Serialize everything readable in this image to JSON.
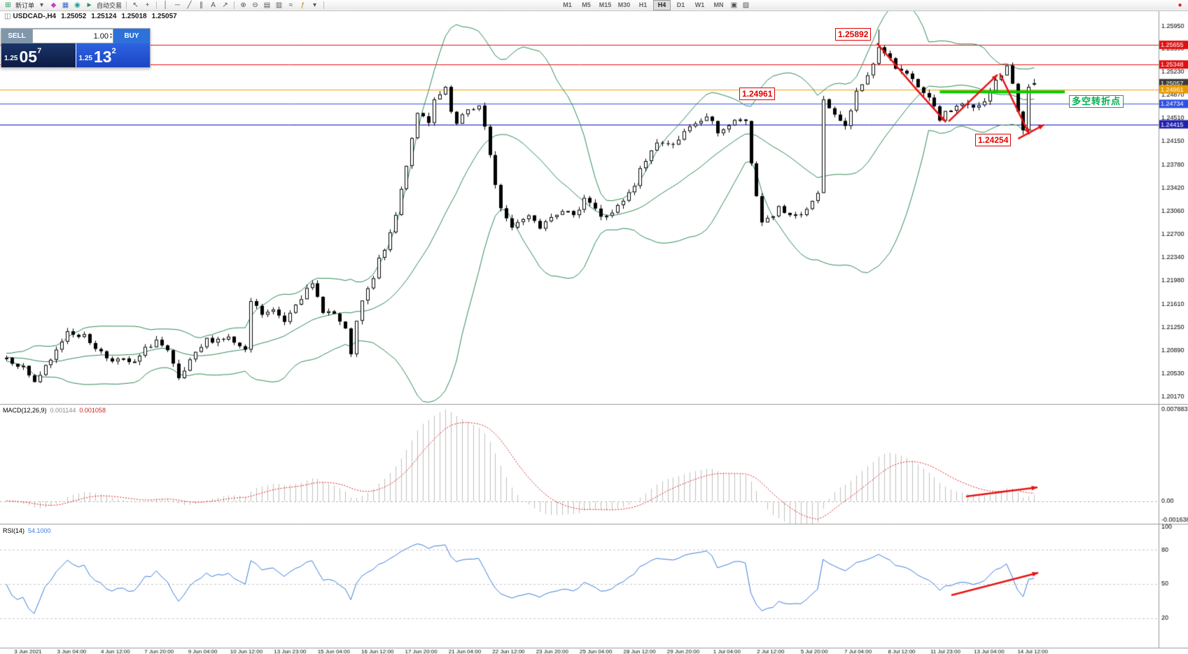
{
  "toolbar": {
    "new_order_label": "新订单",
    "autotrading_label": "自动交易",
    "timeframes": [
      "M1",
      "M5",
      "M15",
      "M30",
      "H1",
      "H4",
      "D1",
      "W1",
      "MN"
    ],
    "active_timeframe": "H4",
    "icons": {
      "new_order": "⊞",
      "caret": "▾",
      "style": "◆",
      "panels": "▦",
      "cycle": "◉",
      "play": "►",
      "cursor": "↖",
      "crosshair": "+",
      "vline": "│",
      "hline": "─",
      "trendline": "╱",
      "channel": "∥",
      "text": "A",
      "arrows": "↗",
      "zoom_in": "⊕",
      "zoom_out": "⊖",
      "chart_bars": "▥",
      "chart_candles": "▤",
      "chart_line": "≈",
      "indicators": "ƒ",
      "tile": "▣",
      "templates": "▨",
      "alert": "●"
    }
  },
  "chart_header": {
    "symbol_period": "USDCAD-,H4",
    "open": "1.25052",
    "high": "1.25124",
    "low": "1.25018",
    "close": "1.25057"
  },
  "trade_panel": {
    "sell_label": "SELL",
    "buy_label": "BUY",
    "volume": "1.00",
    "spin_up": "▴",
    "spin_down": "▾",
    "sell_price": {
      "base": "1.25",
      "big": "05",
      "pip": "7"
    },
    "buy_price": {
      "base": "1.25",
      "big": "13",
      "pip": "2"
    }
  },
  "annotations": {
    "peak_label": "1.25892",
    "support_label": "1.24961",
    "low_label": "1.24254",
    "turning_point_label": "多空转折点"
  },
  "chart_data": {
    "type": "candlestick",
    "symbol": "USDCAD-",
    "timeframe": "H4",
    "ohlc": {
      "open": 1.25052,
      "high": 1.25124,
      "low": 1.25018,
      "close": 1.25057
    },
    "price_scale": {
      "min": 1.2005,
      "max": 1.2618,
      "ticks": [
        "1.25950",
        "1.25590",
        "1.25230",
        "1.24870",
        "1.24510",
        "1.24150",
        "1.23780",
        "1.23420",
        "1.23060",
        "1.22700",
        "1.22340",
        "1.21980",
        "1.21610",
        "1.21250",
        "1.20890",
        "1.20530",
        "1.20170"
      ]
    },
    "tagged_prices": [
      {
        "label": "1.25655",
        "value": 1.25655,
        "bg": "#e01010",
        "line": "#ee1111"
      },
      {
        "label": "1.25348",
        "value": 1.25348,
        "bg": "#e01010",
        "line": "#ee1111"
      },
      {
        "label": "1.25057",
        "value": 1.25057,
        "bg": "#3a3a3a",
        "line": null
      },
      {
        "label": "1.24961",
        "value": 1.24961,
        "bg": "#e89b00",
        "line": "#f0a000"
      },
      {
        "label": "1.24734",
        "value": 1.24734,
        "bg": "#3050e0",
        "line": "#3355e8"
      },
      {
        "label": "1.24415",
        "value": 1.24415,
        "bg": "#2020b0",
        "line": "#1111bb"
      }
    ],
    "bars": 186,
    "price_path": [
      [
        0,
        1.2078
      ],
      [
        3,
        1.2062
      ],
      [
        5,
        1.204
      ],
      [
        8,
        1.2072
      ],
      [
        11,
        1.212
      ],
      [
        14,
        1.211
      ],
      [
        18,
        1.2078
      ],
      [
        21,
        1.2072
      ],
      [
        23,
        1.2068
      ],
      [
        25,
        1.209
      ],
      [
        27,
        1.2105
      ],
      [
        29,
        1.2085
      ],
      [
        31,
        1.2042
      ],
      [
        33,
        1.207
      ],
      [
        36,
        1.2105
      ],
      [
        40,
        1.2108
      ],
      [
        43,
        1.2085
      ],
      [
        44,
        1.2165
      ],
      [
        46,
        1.2145
      ],
      [
        48,
        1.215
      ],
      [
        50,
        1.2135
      ],
      [
        52,
        1.2165
      ],
      [
        55,
        1.219
      ],
      [
        57,
        1.2152
      ],
      [
        59,
        1.2145
      ],
      [
        61,
        1.2118
      ],
      [
        62,
        1.2085
      ],
      [
        63,
        1.213
      ],
      [
        64,
        1.2165
      ],
      [
        66,
        1.22
      ],
      [
        67,
        1.223
      ],
      [
        69,
        1.2268
      ],
      [
        70,
        1.23
      ],
      [
        72,
        1.238
      ],
      [
        74,
        1.2462
      ],
      [
        76,
        1.244
      ],
      [
        77,
        1.2478
      ],
      [
        79,
        1.2495
      ],
      [
        80,
        1.246
      ],
      [
        81,
        1.244
      ],
      [
        83,
        1.2465
      ],
      [
        85,
        1.247
      ],
      [
        86,
        1.2435
      ],
      [
        87,
        1.239
      ],
      [
        89,
        1.231
      ],
      [
        91,
        1.228
      ],
      [
        92,
        1.2292
      ],
      [
        94,
        1.23
      ],
      [
        96,
        1.2282
      ],
      [
        97,
        1.2295
      ],
      [
        100,
        1.231
      ],
      [
        102,
        1.2295
      ],
      [
        104,
        1.233
      ],
      [
        106,
        1.231
      ],
      [
        107,
        1.2295
      ],
      [
        109,
        1.2305
      ],
      [
        111,
        1.232
      ],
      [
        113,
        1.2345
      ],
      [
        114,
        1.237
      ],
      [
        116,
        1.24
      ],
      [
        117,
        1.2415
      ],
      [
        119,
        1.2408
      ],
      [
        121,
        1.242
      ],
      [
        123,
        1.2435
      ],
      [
        124,
        1.244
      ],
      [
        126,
        1.2455
      ],
      [
        128,
        1.243
      ],
      [
        130,
        1.244
      ],
      [
        132,
        1.245
      ],
      [
        133,
        1.2442
      ],
      [
        134,
        1.238
      ],
      [
        135,
        1.233
      ],
      [
        136,
        1.229
      ],
      [
        138,
        1.23
      ],
      [
        139,
        1.231
      ],
      [
        141,
        1.2295
      ],
      [
        143,
        1.23
      ],
      [
        145,
        1.232
      ],
      [
        146,
        1.233
      ],
      [
        147,
        1.248
      ],
      [
        148,
        1.2465
      ],
      [
        149,
        1.246
      ],
      [
        150,
        1.2445
      ],
      [
        151,
        1.244
      ],
      [
        152,
        1.2462
      ],
      [
        153,
        1.249
      ],
      [
        155,
        1.252
      ],
      [
        157,
        1.256
      ],
      [
        158,
        1.255
      ],
      [
        160,
        1.253
      ],
      [
        162,
        1.2525
      ],
      [
        164,
        1.2495
      ],
      [
        166,
        1.248
      ],
      [
        168,
        1.245
      ],
      [
        170,
        1.2465
      ],
      [
        172,
        1.2475
      ],
      [
        174,
        1.2465
      ],
      [
        176,
        1.2475
      ],
      [
        178,
        1.251
      ],
      [
        180,
        1.253
      ],
      [
        181,
        1.2505
      ],
      [
        182,
        1.2465
      ],
      [
        183,
        1.243
      ],
      [
        184,
        1.25
      ],
      [
        185,
        1.25057
      ]
    ],
    "bollinger": {
      "period": 20,
      "deviation": 2,
      "color": "#2e8b57"
    },
    "candle_colors": {
      "up_fill": "#ffffff",
      "down_fill": "#000000",
      "border": "#000000"
    },
    "green_level_line": {
      "bar1": 168,
      "bar2": 190.5,
      "price": 1.2492,
      "color": "#00cf00",
      "width": 4
    },
    "arrow_color": "#e81212",
    "trend_arrows": [
      {
        "pts": [
          [
            156.7,
            1.2568
          ],
          [
            163.8,
            1.2496
          ],
          [
            169.1,
            1.2445
          ]
        ]
      },
      {
        "pts": [
          [
            169.6,
            1.2446
          ],
          [
            178.4,
            1.2519
          ]
        ]
      },
      {
        "pts": [
          [
            178.8,
            1.2521
          ],
          [
            184.1,
            1.2426
          ]
        ]
      },
      {
        "pts": [
          [
            182.1,
            1.2419
          ],
          [
            186.8,
            1.2441
          ]
        ]
      }
    ],
    "macd": {
      "params": "MACD(12,26,9)",
      "value": "0.001144",
      "signal": "0.001058",
      "axis_max": "0.007883",
      "axis_zero": "0.00",
      "axis_min": "-0.001638",
      "hist_color": "#c0c0c0",
      "signal_color": "#e02020",
      "arrow": [
        [
          1380,
          693
        ],
        [
          1482,
          680
        ]
      ]
    },
    "rsi": {
      "params": "RSI(14)",
      "value": "54.1000",
      "levels": [
        "100",
        "80",
        "50",
        "20"
      ],
      "line_color": "#3b7de0",
      "arrow": [
        [
          1359,
          834
        ],
        [
          1483,
          802
        ]
      ]
    },
    "time_labels": [
      "3 Jun 2021",
      "3 Jun 04:00",
      "4 Jun 12:00",
      "7 Jun 20:00",
      "9 Jun 04:00",
      "10 Jun 12:00",
      "13 Jun 23:00",
      "15 Jun 04:00",
      "16 Jun 12:00",
      "17 Jun 20:00",
      "21 Jun 04:00",
      "22 Jun 12:00",
      "23 Jun 20:00",
      "25 Jun 04:00",
      "28 Jun 12:00",
      "29 Jun 20:00",
      "1 Jul 04:00",
      "2 Jul 12:00",
      "5 Jul 20:00",
      "7 Jul 04:00",
      "8 Jul 12:00",
      "11 Jul 23:00",
      "13 Jul 04:00",
      "14 Jul 12:00"
    ]
  }
}
